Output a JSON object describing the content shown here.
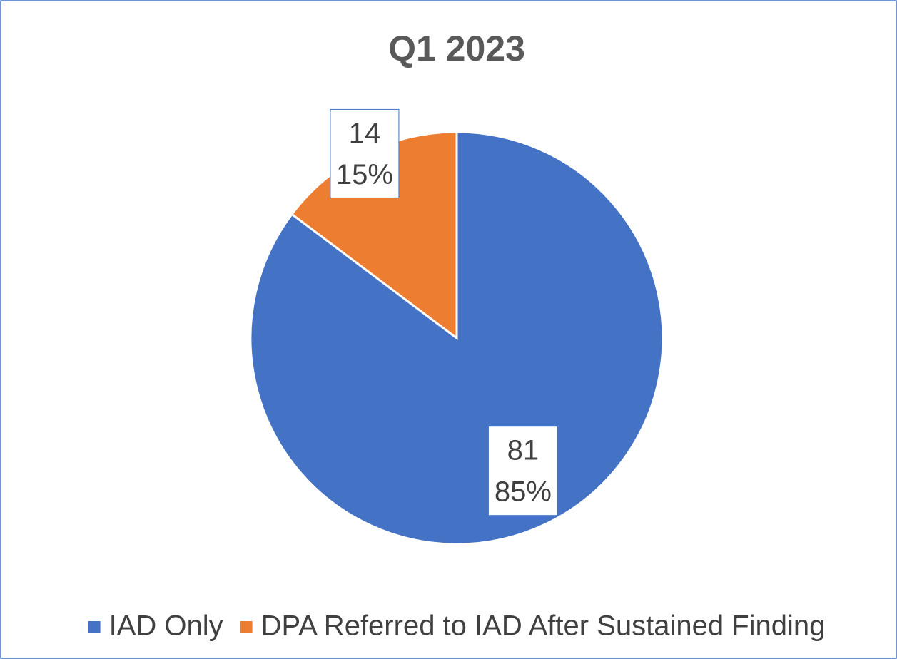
{
  "chart_data": {
    "type": "pie",
    "title": "Q1 2023",
    "categories": [
      "IAD Only",
      "DPA Referred to IAD After Sustained Finding"
    ],
    "values": [
      81,
      14
    ],
    "percent_labels": [
      "85%",
      "15%"
    ],
    "colors": [
      "#4472c4",
      "#ed7d31"
    ],
    "legend": "bottom"
  }
}
